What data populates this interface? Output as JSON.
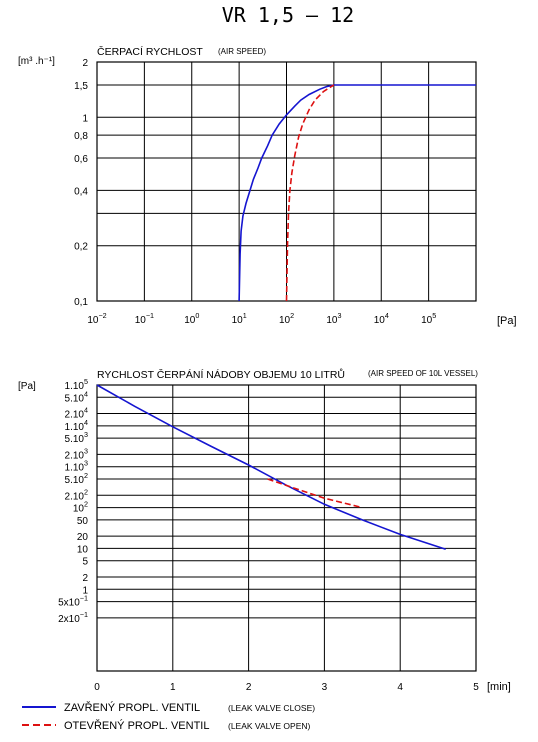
{
  "page_title": "VR 1,5 – 12",
  "colors": {
    "closed": "#1515d0",
    "open": "#dd1111",
    "grid": "#000000"
  },
  "chart_data": [
    {
      "type": "line",
      "title": "ČERPACÍ RYCHLOST",
      "subtitle": "(AIR SPEED)",
      "ylabel": "[m³ .h⁻¹]",
      "xlabel": "[Pa]",
      "xscale": "log",
      "yscale": "log",
      "xlim": [
        0.01,
        1000000
      ],
      "ylim": [
        0.1,
        2
      ],
      "x_ticks": [
        0.01,
        0.1,
        1,
        10,
        100,
        1000,
        10000,
        100000
      ],
      "x_tick_labels": [
        {
          "base": "10",
          "exp": "−2"
        },
        {
          "base": "10",
          "exp": "−1"
        },
        {
          "base": "10",
          "exp": "0"
        },
        {
          "base": "10",
          "exp": "1"
        },
        {
          "base": "10",
          "exp": "2"
        },
        {
          "base": "10",
          "exp": "3"
        },
        {
          "base": "10",
          "exp": "4"
        },
        {
          "base": "10",
          "exp": "5"
        }
      ],
      "y_ticks": [
        2,
        1.5,
        1,
        0.8,
        0.6,
        0.4,
        0.3,
        0.2,
        0.1
      ],
      "y_tick_labels": [
        "2",
        "1,5",
        "1",
        "0,8",
        "0,6",
        "0,4",
        "",
        "0,2",
        "0,1"
      ],
      "grid": true,
      "series": [
        {
          "key": "closed",
          "style": "solid",
          "x": [
            10,
            10.5,
            11,
            12,
            14,
            17,
            20,
            25,
            30,
            40,
            50,
            70,
            100,
            150,
            200,
            300,
            500,
            700,
            1000,
            2000,
            5000,
            100000,
            1000000
          ],
          "y": [
            0.1,
            0.18,
            0.24,
            0.29,
            0.34,
            0.4,
            0.46,
            0.53,
            0.6,
            0.7,
            0.8,
            0.92,
            1.03,
            1.15,
            1.24,
            1.33,
            1.42,
            1.47,
            1.5,
            1.5,
            1.5,
            1.5,
            1.5
          ]
        },
        {
          "key": "open",
          "style": "dashed",
          "x": [
            100,
            105,
            110,
            118,
            130,
            150,
            180,
            220,
            300,
            400,
            600,
            800,
            1000
          ],
          "y": [
            0.1,
            0.2,
            0.3,
            0.4,
            0.5,
            0.62,
            0.78,
            0.92,
            1.1,
            1.24,
            1.38,
            1.45,
            1.5
          ]
        }
      ]
    },
    {
      "type": "line",
      "title": "RYCHLOST ČERPÁNÍ NÁDOBY OBJEMU 10 LITRŮ",
      "subtitle": "(AIR SPEED OF 10L VESSEL)",
      "ylabel": "[Pa]",
      "xlabel": "[min]",
      "yscale": "log",
      "xlim": [
        0,
        5
      ],
      "ylim": [
        0.01,
        100000
      ],
      "x_ticks": [
        0,
        1,
        2,
        3,
        4,
        5
      ],
      "x_tick_labels": [
        "0",
        "1",
        "2",
        "3",
        "4",
        "5"
      ],
      "y_ticks": [
        100000,
        50000,
        20000,
        10000,
        5000,
        2000,
        1000,
        500,
        200,
        100,
        50,
        20,
        10,
        5,
        2,
        1,
        0.5,
        0.2
      ],
      "y_tick_labels": [
        {
          "base": "1.10",
          "exp": "5"
        },
        {
          "base": "5.10",
          "exp": "4"
        },
        {
          "base": "2.10",
          "exp": "4"
        },
        {
          "base": "1.10",
          "exp": "4"
        },
        {
          "base": "5.10",
          "exp": "3"
        },
        {
          "base": "2.10",
          "exp": "3"
        },
        {
          "base": "1.10",
          "exp": "3"
        },
        {
          "base": "5.10",
          "exp": "2"
        },
        {
          "base": "2.10",
          "exp": "2"
        },
        {
          "base": "10",
          "exp": "2"
        },
        {
          "base": "50",
          "exp": ""
        },
        {
          "base": "20",
          "exp": ""
        },
        {
          "base": "10",
          "exp": ""
        },
        {
          "base": "5",
          "exp": ""
        },
        {
          "base": "2",
          "exp": ""
        },
        {
          "base": "1",
          "exp": ""
        },
        {
          "base": "5x10",
          "exp": "−1"
        },
        {
          "base": "2x10",
          "exp": "−1"
        }
      ],
      "grid": true,
      "series": [
        {
          "key": "closed",
          "style": "solid",
          "x": [
            0,
            0.5,
            1,
            1.5,
            2,
            2.5,
            3,
            3.5,
            4,
            4.6
          ],
          "y": [
            100000,
            30000,
            9500,
            3200,
            1100,
            350,
            120,
            50,
            22,
            9.5
          ]
        },
        {
          "key": "open",
          "style": "dashed",
          "x": [
            2.25,
            2.6,
            3.0,
            3.5
          ],
          "y": [
            500,
            300,
            170,
            100
          ]
        }
      ]
    }
  ],
  "legend": [
    {
      "key": "closed",
      "label": "ZAVŘENÝ  PROPL.  VENTIL",
      "note": "(LEAK VALVE CLOSE)"
    },
    {
      "key": "open",
      "label": "OTEVŘENÝ  PROPL.  VENTIL",
      "note": "(LEAK VALVE OPEN)"
    }
  ]
}
